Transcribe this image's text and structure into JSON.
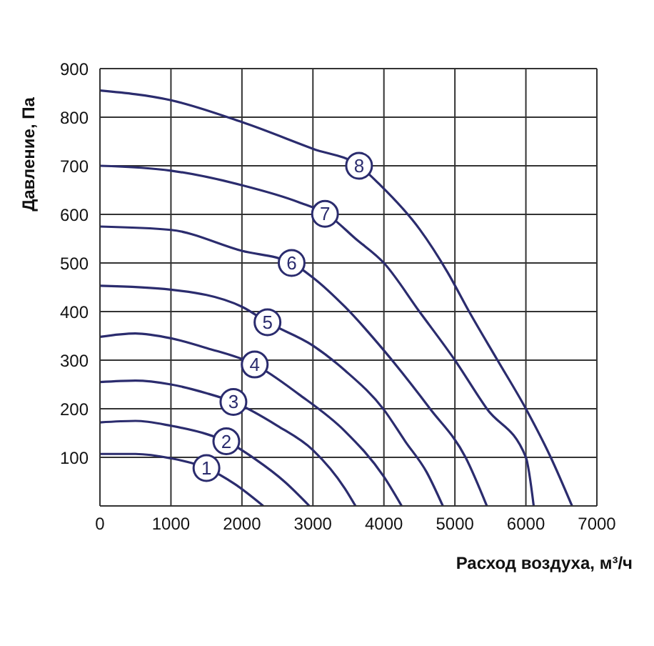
{
  "chart_data": {
    "type": "line",
    "xlabel": "Расход воздуха, м³/ч",
    "ylabel": "Давление, Па",
    "xlim": [
      0,
      7000
    ],
    "xticks": [
      0,
      1000,
      2000,
      3000,
      4000,
      5000,
      6000,
      7000
    ],
    "ylim": [
      0,
      900
    ],
    "yticks": [
      100,
      200,
      300,
      400,
      500,
      600,
      700,
      800,
      900
    ],
    "grid": true,
    "marker": "none",
    "line_style": "solid",
    "series": [
      {
        "color": "#2b2c6e",
        "x": [
          0,
          500,
          1000,
          1500,
          1900,
          2300
        ],
        "values": [
          107,
          107,
          98,
          78,
          45,
          0
        ]
      },
      {
        "color": "#2b2c6e",
        "x": [
          0,
          500,
          1000,
          1500,
          1780,
          2200,
          2600,
          2950
        ],
        "values": [
          172,
          175,
          165,
          148,
          133,
          95,
          50,
          0
        ]
      },
      {
        "color": "#2b2c6e",
        "x": [
          0,
          500,
          1000,
          1500,
          1880,
          2500,
          3000,
          3450,
          3600
        ],
        "values": [
          255,
          258,
          250,
          232,
          214,
          165,
          115,
          36,
          0
        ]
      },
      {
        "color": "#2b2c6e",
        "x": [
          0,
          500,
          1000,
          1500,
          2180,
          2800,
          3450,
          4000,
          4250
        ],
        "values": [
          348,
          355,
          345,
          325,
          291,
          230,
          154,
          60,
          0
        ]
      },
      {
        "color": "#2b2c6e",
        "x": [
          0,
          1000,
          2000,
          2360,
          3000,
          3450,
          4000,
          4300,
          4600,
          4830
        ],
        "values": [
          453,
          445,
          410,
          378,
          330,
          279,
          198,
          133,
          70,
          0
        ]
      },
      {
        "color": "#2b2c6e",
        "x": [
          0,
          1000,
          2000,
          2700,
          3000,
          3450,
          4000,
          4650,
          5150,
          5450
        ],
        "values": [
          575,
          568,
          525,
          500,
          470,
          410,
          320,
          200,
          100,
          0
        ]
      },
      {
        "color": "#2b2c6e",
        "x": [
          0,
          1000,
          2000,
          2800,
          3200,
          3600,
          4000,
          4500,
          5000,
          5450,
          6000,
          6110
        ],
        "values": [
          700,
          690,
          660,
          625,
          600,
          550,
          500,
          400,
          300,
          200,
          100,
          0
        ]
      },
      {
        "color": "#2b2c6e",
        "x": [
          0,
          1000,
          2000,
          3000,
          3650,
          3950,
          4500,
          4900,
          5200,
          5600,
          6000,
          6350,
          6650
        ],
        "values": [
          855,
          835,
          790,
          735,
          700,
          660,
          570,
          480,
          400,
          300,
          200,
          100,
          0
        ]
      }
    ],
    "annotations": [
      {
        "text": "1",
        "x": 1500,
        "y": 78
      },
      {
        "text": "2",
        "x": 1780,
        "y": 133
      },
      {
        "text": "3",
        "x": 1880,
        "y": 214
      },
      {
        "text": "4",
        "x": 2180,
        "y": 291
      },
      {
        "text": "5",
        "x": 2360,
        "y": 378
      },
      {
        "text": "6",
        "x": 2700,
        "y": 500
      },
      {
        "text": "7",
        "x": 3170,
        "y": 601
      },
      {
        "text": "8",
        "x": 3650,
        "y": 700
      }
    ]
  }
}
